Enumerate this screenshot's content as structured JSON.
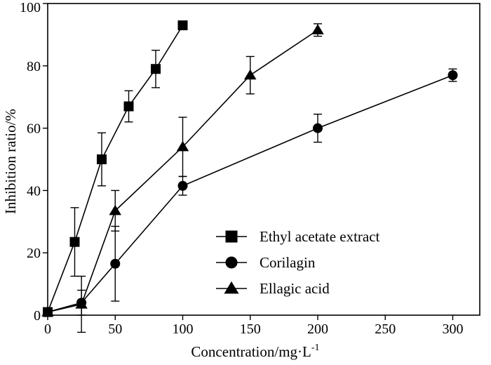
{
  "chart_data": {
    "type": "line",
    "xlabel": "Concentration/mg·L",
    "xlabel_sup": "-1",
    "ylabel": "Inhibition ratio/%",
    "xlim": [
      0,
      320
    ],
    "ylim": [
      0,
      100
    ],
    "xticks": [
      0,
      50,
      100,
      150,
      200,
      250,
      300
    ],
    "yticks": [
      0,
      20,
      40,
      60,
      80,
      100
    ],
    "grid": false,
    "legend_position": "bottom-right",
    "series": [
      {
        "name": "Ethyl acetate extract",
        "marker": "square",
        "points": [
          {
            "x": 0,
            "y": 1,
            "err": 0
          },
          {
            "x": 20,
            "y": 23.5,
            "err": 11
          },
          {
            "x": 40,
            "y": 50,
            "err": 8.5
          },
          {
            "x": 60,
            "y": 67,
            "err": 5
          },
          {
            "x": 80,
            "y": 79,
            "err": 6
          },
          {
            "x": 100,
            "y": 93,
            "err": 1
          }
        ]
      },
      {
        "name": "Corilagin",
        "marker": "circle",
        "points": [
          {
            "x": 0,
            "y": 1,
            "err": 0
          },
          {
            "x": 25,
            "y": 4,
            "err": 4
          },
          {
            "x": 50,
            "y": 16.5,
            "err": 12
          },
          {
            "x": 100,
            "y": 41.5,
            "err": 3
          },
          {
            "x": 200,
            "y": 60,
            "err": 4.5
          },
          {
            "x": 300,
            "y": 77,
            "err": 2
          }
        ]
      },
      {
        "name": "Ellagic acid",
        "marker": "triangle",
        "points": [
          {
            "x": 0,
            "y": 1,
            "err": 0
          },
          {
            "x": 25,
            "y": 3.5,
            "err": 9
          },
          {
            "x": 50,
            "y": 33.5,
            "err": 6.5
          },
          {
            "x": 100,
            "y": 54,
            "err": 9.5
          },
          {
            "x": 150,
            "y": 77,
            "err": 6
          },
          {
            "x": 200,
            "y": 91.5,
            "err": 2
          }
        ]
      }
    ]
  }
}
